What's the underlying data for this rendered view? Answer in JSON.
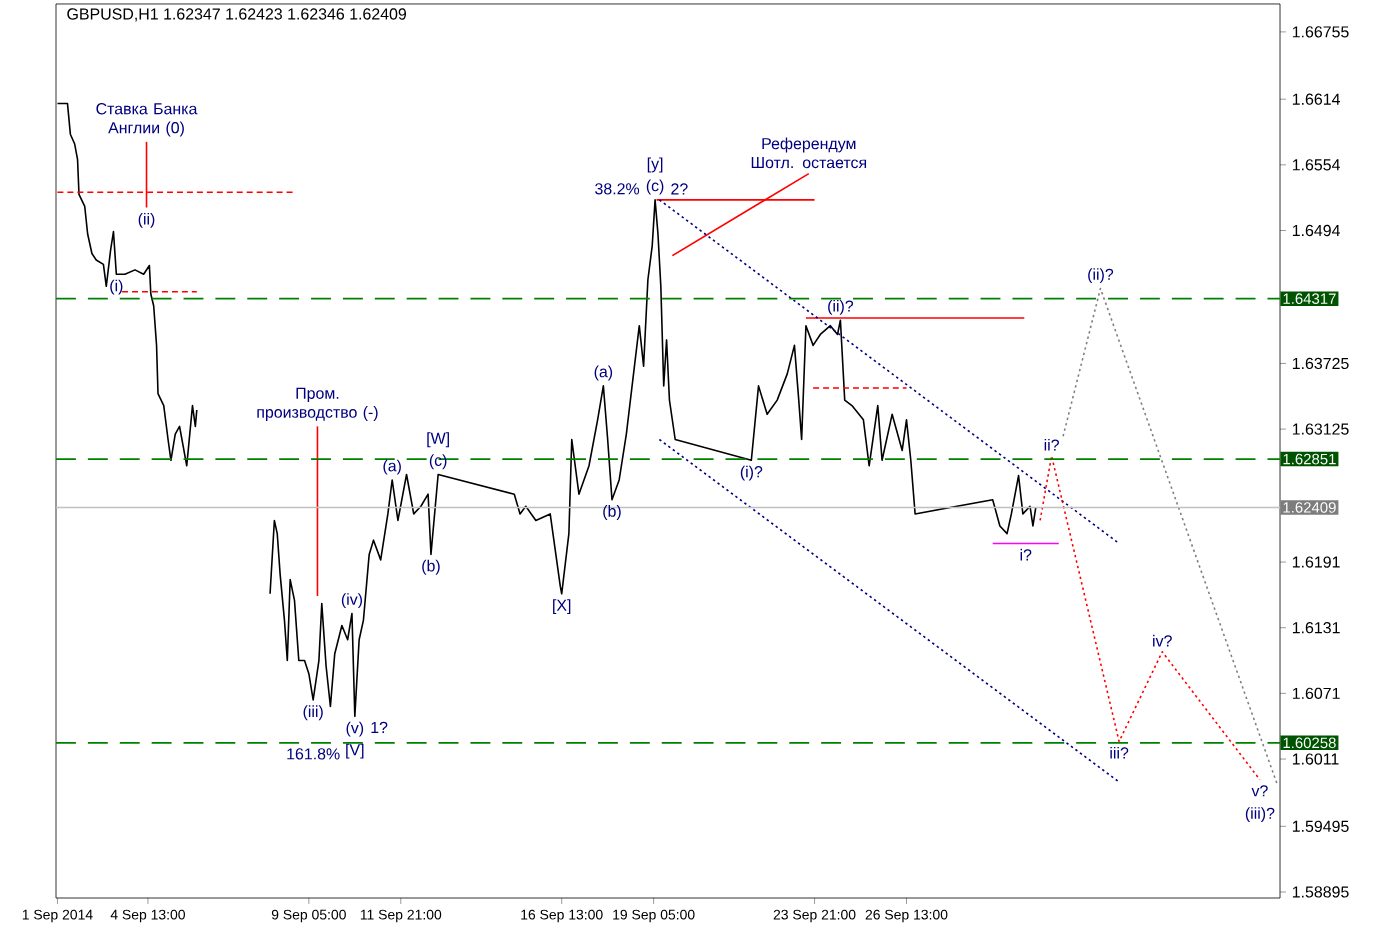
{
  "chart_data": {
    "type": "line",
    "title": "GBPUSD,H1 1.62347 1.62423 1.62346 1.62409",
    "xlim": [
      "2014-09-01T21:00",
      "2014-10-07T09:00"
    ],
    "ylim": [
      1.5884,
      1.6701
    ],
    "xticks": [
      {
        "value": "2014-09-01T22:00",
        "label": "1 Sep 2014"
      },
      {
        "value": "2014-09-04T13:00",
        "label": "4 Sep 13:00"
      },
      {
        "value": "2014-09-09T05:00",
        "label": "9 Sep 05:00"
      },
      {
        "value": "2014-09-11T21:00",
        "label": "11 Sep 21:00"
      },
      {
        "value": "2014-09-16T13:00",
        "label": "16 Sep 13:00"
      },
      {
        "value": "2014-09-19T05:00",
        "label": "19 Sep 05:00"
      },
      {
        "value": "2014-09-23T21:00",
        "label": "23 Sep 21:00"
      },
      {
        "value": "2014-09-26T13:00",
        "label": "26 Sep 13:00"
      }
    ],
    "yticks": [
      1.58895,
      1.59495,
      1.6011,
      1.6071,
      1.6131,
      1.6191,
      1.63125,
      1.63725,
      1.6494,
      1.6554,
      1.6614,
      1.66755
    ],
    "series": [
      {
        "color": "#000000",
        "line_style": "solid",
        "x": [
          "2014-09-01T22:00",
          "2014-09-02T05:00",
          "2014-09-02T07:00",
          "2014-09-02T10:00",
          "2014-09-02T12:00",
          "2014-09-02T13:00",
          "2014-09-02T17:00",
          "2014-09-02T19:00",
          "2014-09-02T22:00",
          "2014-09-03T01:00",
          "2014-09-03T06:00",
          "2014-09-03T08:00",
          "2014-09-03T11:00",
          "2014-09-03T13:00",
          "2014-09-03T15:00",
          "2014-09-03T21:00",
          "2014-09-04T04:00",
          "2014-09-04T10:00",
          "2014-09-04T14:00",
          "2014-09-04T15:00",
          "2014-09-04T17:00",
          "2014-09-04T19:00",
          "2014-09-04T20:00",
          "2014-09-05T00:00",
          "2014-09-05T03:00",
          "2014-09-05T05:00",
          "2014-09-05T08:00",
          "2014-09-05T11:00",
          "2014-09-05T16:00",
          "2014-09-05T20:00",
          "2014-09-05T22:00",
          "2014-09-05T23:00",
          "2014-09-08T00:00",
          "2014-09-08T02:00",
          "2014-09-08T05:00",
          "2014-09-08T07:00",
          "2014-09-08T09:00",
          "2014-09-08T12:00",
          "2014-09-08T14:00",
          "2014-09-08T16:00",
          "2014-09-08T19:00",
          "2014-09-08T22:00",
          "2014-09-09T02:00",
          "2014-09-09T05:00",
          "2014-09-09T08:00",
          "2014-09-09T12:00",
          "2014-09-09T14:00",
          "2014-09-09T17:00",
          "2014-09-09T20:00",
          "2014-09-09T23:00",
          "2014-09-10T04:00",
          "2014-09-10T08:00",
          "2014-09-10T11:00",
          "2014-09-10T13:00",
          "2014-09-10T16:00",
          "2014-09-10T19:00",
          "2014-09-10T23:00",
          "2014-09-11T02:00",
          "2014-09-11T07:00",
          "2014-09-11T12:00",
          "2014-09-11T15:00",
          "2014-09-11T19:00",
          "2014-09-12T01:00",
          "2014-09-12T06:00",
          "2014-09-12T11:00",
          "2014-09-12T16:00",
          "2014-09-12T18:00",
          "2014-09-12T23:00",
          "2014-09-15T04:00",
          "2014-09-15T08:00",
          "2014-09-15T12:00",
          "2014-09-15T19:00",
          "2014-09-16T05:00",
          "2014-09-16T12:00",
          "2014-09-16T13:00",
          "2014-09-16T18:00",
          "2014-09-16T20:00",
          "2014-09-17T01:00",
          "2014-09-17T08:00",
          "2014-09-17T14:00",
          "2014-09-17T18:00",
          "2014-09-17T21:00",
          "2014-09-18T00:00",
          "2014-09-18T05:00",
          "2014-09-18T10:00",
          "2014-09-18T15:00",
          "2014-09-18T19:00",
          "2014-09-18T22:00",
          "2014-09-19T01:00",
          "2014-09-19T04:00",
          "2014-09-19T06:00",
          "2014-09-19T08:00",
          "2014-09-19T10:00",
          "2014-09-19T12:00",
          "2014-09-19T14:00",
          "2014-09-19T16:00",
          "2014-09-19T20:00",
          "2014-09-22T01:00",
          "2014-09-22T06:00",
          "2014-09-22T12:00",
          "2014-09-22T19:00",
          "2014-09-23T02:00",
          "2014-09-23T07:00",
          "2014-09-23T10:00",
          "2014-09-23T12:00",
          "2014-09-23T15:00",
          "2014-09-23T20:00",
          "2014-09-24T01:00",
          "2014-09-24T08:00",
          "2014-09-24T13:00",
          "2014-09-24T15:00",
          "2014-09-24T18:00",
          "2014-09-24T23:00",
          "2014-09-25T07:00",
          "2014-09-25T11:00",
          "2014-09-25T17:00",
          "2014-09-25T20:00",
          "2014-09-26T03:00",
          "2014-09-26T10:00",
          "2014-09-26T13:00",
          "2014-09-26T16:00",
          "2014-09-26T19:00",
          "2014-09-29T01:00",
          "2014-09-29T06:00",
          "2014-09-29T11:00",
          "2014-09-29T14:00",
          "2014-09-29T19:00",
          "2014-09-29T22:00",
          "2014-09-30T03:00",
          "2014-09-30T05:00",
          "2014-09-30T07:00"
        ],
        "values": [
          1.661,
          1.661,
          1.6582,
          1.6573,
          1.6559,
          1.6527,
          1.6516,
          1.6491,
          1.6473,
          1.6467,
          1.6463,
          1.6443,
          1.6476,
          1.6493,
          1.6454,
          1.6454,
          1.6458,
          1.6454,
          1.6462,
          1.6436,
          1.6425,
          1.6389,
          1.6345,
          1.6334,
          1.6303,
          1.6284,
          1.6308,
          1.6315,
          1.6279,
          1.6334,
          1.6315,
          1.633,
          null,
          1.6162,
          1.6229,
          1.6217,
          1.618,
          1.6138,
          1.6101,
          1.6175,
          1.6156,
          1.6101,
          1.6101,
          1.6089,
          1.6065,
          1.6101,
          1.6153,
          1.6096,
          1.6059,
          1.6107,
          1.6133,
          1.612,
          1.6144,
          1.605,
          1.612,
          1.6138,
          1.6198,
          1.6211,
          1.6193,
          1.6235,
          1.6266,
          1.6229,
          1.6271,
          1.6235,
          1.6242,
          1.6253,
          1.6198,
          1.6271,
          1.6253,
          1.6235,
          1.6242,
          1.6229,
          1.6235,
          1.6169,
          1.6162,
          1.6217,
          1.6303,
          1.6253,
          1.6279,
          1.6321,
          1.6352,
          1.6303,
          1.6248,
          1.6266,
          1.6308,
          1.6363,
          1.6407,
          1.637,
          1.6449,
          1.648,
          1.6522,
          1.6491,
          1.6443,
          1.6352,
          1.6394,
          1.6339,
          1.6303,
          1.6284,
          1.6352,
          1.6326,
          1.6339,
          1.6363,
          1.6389,
          1.6339,
          1.6303,
          1.6407,
          1.6389,
          1.6399,
          1.6407,
          1.6399,
          1.6412,
          1.6339,
          1.6334,
          1.6321,
          1.6279,
          1.6334,
          1.6284,
          1.6326,
          1.6293,
          1.6321,
          1.6284,
          1.6235,
          1.6248,
          1.6224,
          1.6217,
          1.6235,
          1.627,
          1.6235,
          1.6242,
          1.6224,
          1.6241
        ]
      },
      {
        "color": "#ff0000",
        "line_style": "dashed",
        "x": [
          "2014-09-01T22:00",
          "2014-09-08T19:00"
        ],
        "values": [
          1.6529,
          1.6529
        ]
      },
      {
        "color": "#ff0000",
        "line_style": "dashed",
        "x": [
          "2014-09-03T19:00",
          "2014-09-05T23:00"
        ],
        "values": [
          1.6438,
          1.6438
        ]
      },
      {
        "color": "#ff0000",
        "line_style": "solid",
        "x": [
          "2014-09-04T12:00",
          "2014-09-04T12:00"
        ],
        "values": [
          1.6575,
          1.6515
        ]
      },
      {
        "color": "#ff0000",
        "line_style": "solid",
        "x": [
          "2014-09-09T11:00",
          "2014-09-09T11:00"
        ],
        "values": [
          1.6315,
          1.616
        ]
      },
      {
        "color": "#ff0000",
        "line_style": "solid",
        "x": [
          "2014-09-19T07:00",
          "2014-09-23T21:00"
        ],
        "values": [
          1.6522,
          1.6522
        ]
      },
      {
        "color": "#ff0000",
        "line_style": "solid",
        "x": [
          "2014-09-19T18:00",
          "2014-09-23T17:00"
        ],
        "values": [
          1.6471,
          1.6546
        ]
      },
      {
        "color": "#ff0000",
        "line_style": "solid",
        "x": [
          "2014-09-23T15:00",
          "2014-09-29T23:00"
        ],
        "values": [
          1.6414,
          1.6414
        ]
      },
      {
        "color": "#ff0000",
        "line_style": "dashed",
        "x": [
          "2014-09-23T20:00",
          "2014-09-26T13:00"
        ],
        "values": [
          1.635,
          1.635
        ]
      },
      {
        "color": "#ff00ff",
        "line_style": "solid",
        "x": [
          "2014-09-29T01:00",
          "2014-09-30T23:00"
        ],
        "values": [
          1.6208,
          1.6208
        ]
      },
      {
        "color": "#000080",
        "line_style": "dotted",
        "x": [
          "2014-09-19T09:00",
          "2014-10-02T16:00"
        ],
        "values": [
          1.6522,
          1.6209
        ]
      },
      {
        "color": "#000080",
        "line_style": "dotted",
        "x": [
          "2014-09-19T09:00",
          "2014-10-02T17:00"
        ],
        "values": [
          1.6303,
          1.599
        ]
      },
      {
        "color": "#ff0000",
        "line_style": "dotted",
        "x": [
          "2014-09-30T10:00",
          "2014-09-30T18:00",
          "2014-10-02T17:00",
          "2014-10-03T23:00",
          "2014-10-06T19:00"
        ],
        "values": [
          1.6229,
          1.6288,
          1.6027,
          1.6109,
          1.5992
        ]
      },
      {
        "color": "#808080",
        "line_style": "dotted",
        "x": [
          "2014-10-01T02:00",
          "2014-10-02T04:00",
          "2014-10-07T07:00"
        ],
        "values": [
          1.6306,
          1.6441,
          1.5988
        ]
      }
    ],
    "ref_lines": [
      {
        "axis": "y",
        "value": 1.64317,
        "label": "1.64317",
        "color": "#008000",
        "line_style": "dashed"
      },
      {
        "axis": "y",
        "value": 1.62851,
        "label": "1.62851",
        "color": "#008000",
        "line_style": "dashed"
      },
      {
        "axis": "y",
        "value": 1.60258,
        "label": "1.60258",
        "color": "#008000",
        "line_style": "dashed"
      },
      {
        "axis": "y",
        "value": 1.62409,
        "label": "1.62409",
        "color": "#c0c0c0",
        "line_style": "solid"
      }
    ],
    "annotations": [
      {
        "text": "Ставка Банка Англии (0)",
        "x": "2014-09-04T12:00",
        "y": 1.6575
      },
      {
        "text": "(ii)",
        "x": "2014-09-04T12:00",
        "y": 1.6515
      },
      {
        "text": "(i)",
        "x": "2014-09-03T15:00",
        "y": 1.6454
      },
      {
        "text": "Пром. производство (-)",
        "x": "2014-09-09T11:00",
        "y": 1.6315
      },
      {
        "text": "(iii)",
        "x": "2014-09-09T08:00",
        "y": 1.6065
      },
      {
        "text": "161.8%",
        "x": "2014-09-09T08:00",
        "y": 1.60258
      },
      {
        "text": "(iv)",
        "x": "2014-09-10T11:00",
        "y": 1.6144
      },
      {
        "text": "(v)",
        "x": "2014-09-10T13:00",
        "y": 1.605
      },
      {
        "text": "[V]",
        "x": "2014-09-10T13:00",
        "y": 1.605
      },
      {
        "text": "1?",
        "x": "2014-09-10T13:00",
        "y": 1.605
      },
      {
        "text": "(a)",
        "x": "2014-09-11T15:00",
        "y": 1.6266
      },
      {
        "text": "(b)",
        "x": "2014-09-12T18:00",
        "y": 1.6198
      },
      {
        "text": "(c)",
        "x": "2014-09-12T23:00",
        "y": 1.6271
      },
      {
        "text": "[W]",
        "x": "2014-09-12T23:00",
        "y": 1.6271
      },
      {
        "text": "[X]",
        "x": "2014-09-16T13:00",
        "y": 1.6162
      },
      {
        "text": "(a)",
        "x": "2014-09-17T18:00",
        "y": 1.6352
      },
      {
        "text": "(b)",
        "x": "2014-09-18T00:00",
        "y": 1.6248
      },
      {
        "text": "(c)",
        "x": "2014-09-19T06:00",
        "y": 1.6522
      },
      {
        "text": "[y]",
        "x": "2014-09-19T06:00",
        "y": 1.6522
      },
      {
        "text": "2?",
        "x": "2014-09-19T06:00",
        "y": 1.6522
      },
      {
        "text": "38.2%",
        "x": "2014-09-19T06:00",
        "y": 1.6522
      },
      {
        "text": "Референдум Шотл. остается",
        "x": "2014-09-23T17:00",
        "y": 1.6546
      },
      {
        "text": "(i)?",
        "x": "2014-09-22T01:00",
        "y": 1.6284
      },
      {
        "text": "(ii)?",
        "x": "2014-09-24T15:00",
        "y": 1.6412
      },
      {
        "text": "i?",
        "x": "2014-09-30T00:00",
        "y": 1.6208
      },
      {
        "text": "ii?",
        "x": "2014-09-30T18:00",
        "y": 1.6288
      },
      {
        "text": "(ii)?",
        "x": "2014-10-02T04:00",
        "y": 1.6441
      },
      {
        "text": "iii?",
        "x": "2014-10-02T17:00",
        "y": 1.6027
      },
      {
        "text": "iv?",
        "x": "2014-10-03T23:00",
        "y": 1.6109
      },
      {
        "text": "v?",
        "x": "2014-10-06T19:00",
        "y": 1.5992
      },
      {
        "text": "(iii)?",
        "x": "2014-10-06T19:00",
        "y": 1.5992
      }
    ]
  }
}
